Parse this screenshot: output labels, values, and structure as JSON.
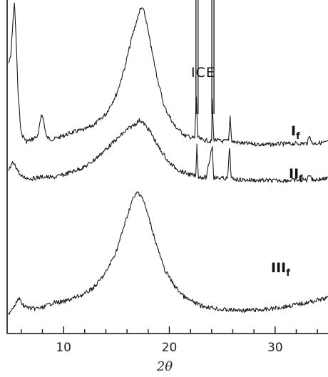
{
  "chart_data": {
    "type": "line",
    "xlabel": "2θ",
    "xlim": [
      4.8,
      35
    ],
    "x_ticks": [
      10,
      20,
      30
    ],
    "y_axis_shown": false,
    "annotations": [
      {
        "id": "ice",
        "text": "ICE",
        "x": 23.2
      },
      {
        "id": "If",
        "main": "I",
        "sub": "f"
      },
      {
        "id": "IIf",
        "main": "II",
        "sub": "f"
      },
      {
        "id": "IIIf",
        "main": "III",
        "sub": "f"
      }
    ],
    "series": [
      {
        "name": "If",
        "offset": 305,
        "points": [
          [
            4.8,
            230
          ],
          [
            5.0,
            245
          ],
          [
            5.2,
            330
          ],
          [
            5.35,
            385
          ],
          [
            5.5,
            300
          ],
          [
            5.7,
            150
          ],
          [
            6.0,
            50
          ],
          [
            6.5,
            30
          ],
          [
            7.0,
            35
          ],
          [
            7.6,
            45
          ],
          [
            7.9,
            100
          ],
          [
            8.1,
            85
          ],
          [
            8.4,
            40
          ],
          [
            9.0,
            35
          ],
          [
            10.0,
            45
          ],
          [
            11.0,
            55
          ],
          [
            12.0,
            60
          ],
          [
            13.0,
            75
          ],
          [
            14.0,
            100
          ],
          [
            15.0,
            150
          ],
          [
            15.8,
            220
          ],
          [
            16.5,
            300
          ],
          [
            17.0,
            345
          ],
          [
            17.2,
            365
          ],
          [
            17.5,
            370
          ],
          [
            17.8,
            340
          ],
          [
            18.2,
            280
          ],
          [
            18.8,
            200
          ],
          [
            19.5,
            120
          ],
          [
            20.5,
            70
          ],
          [
            21.5,
            45
          ],
          [
            22.4,
            38
          ],
          [
            22.55,
            145
          ],
          [
            22.7,
            40
          ],
          [
            23.0,
            35
          ],
          [
            24.0,
            30
          ],
          [
            24.05,
            140
          ],
          [
            24.2,
            35
          ],
          [
            25.0,
            30
          ],
          [
            25.6,
            32
          ],
          [
            25.75,
            95
          ],
          [
            25.9,
            30
          ],
          [
            27.0,
            25
          ],
          [
            29.0,
            22
          ],
          [
            31.0,
            24
          ],
          [
            33.0,
            25
          ],
          [
            33.3,
            45
          ],
          [
            33.5,
            25
          ],
          [
            35.0,
            28
          ]
        ]
      },
      {
        "name": "IIf",
        "offset": 125,
        "points": [
          [
            4.8,
            55
          ],
          [
            5.2,
            75
          ],
          [
            5.5,
            65
          ],
          [
            6.0,
            40
          ],
          [
            7.0,
            35
          ],
          [
            8.0,
            40
          ],
          [
            9.0,
            38
          ],
          [
            10.0,
            45
          ],
          [
            11.0,
            55
          ],
          [
            12.0,
            65
          ],
          [
            13.0,
            85
          ],
          [
            14.0,
            110
          ],
          [
            15.0,
            135
          ],
          [
            16.0,
            160
          ],
          [
            16.8,
            175
          ],
          [
            17.2,
            185
          ],
          [
            17.6,
            175
          ],
          [
            18.2,
            155
          ],
          [
            19.0,
            115
          ],
          [
            20.0,
            75
          ],
          [
            21.0,
            55
          ],
          [
            22.0,
            45
          ],
          [
            22.5,
            42
          ],
          [
            22.6,
            120
          ],
          [
            22.75,
            40
          ],
          [
            23.5,
            38
          ],
          [
            24.05,
            120
          ],
          [
            24.2,
            38
          ],
          [
            25.5,
            35
          ],
          [
            25.7,
            115
          ],
          [
            25.85,
            35
          ],
          [
            27.0,
            32
          ],
          [
            30.0,
            30
          ],
          [
            33.0,
            32
          ],
          [
            33.3,
            48
          ],
          [
            33.5,
            32
          ],
          [
            35.0,
            35
          ]
        ]
      },
      {
        "name": "IIIf",
        "offset": 0,
        "points": [
          [
            4.8,
            0
          ],
          [
            5.3,
            20
          ],
          [
            5.8,
            38
          ],
          [
            6.2,
            20
          ],
          [
            7.0,
            12
          ],
          [
            8.0,
            15
          ],
          [
            9.0,
            28
          ],
          [
            10.0,
            30
          ],
          [
            11.0,
            40
          ],
          [
            12.0,
            50
          ],
          [
            13.0,
            70
          ],
          [
            14.0,
            105
          ],
          [
            15.0,
            160
          ],
          [
            15.8,
            230
          ],
          [
            16.5,
            290
          ],
          [
            17.0,
            310
          ],
          [
            17.4,
            300
          ],
          [
            18.0,
            250
          ],
          [
            18.8,
            175
          ],
          [
            19.5,
            115
          ],
          [
            20.5,
            70
          ],
          [
            21.5,
            40
          ],
          [
            23.0,
            20
          ],
          [
            25.0,
            10
          ],
          [
            27.0,
            8
          ],
          [
            29.0,
            10
          ],
          [
            31.0,
            18
          ],
          [
            33.0,
            28
          ],
          [
            35.0,
            40
          ]
        ]
      }
    ]
  }
}
